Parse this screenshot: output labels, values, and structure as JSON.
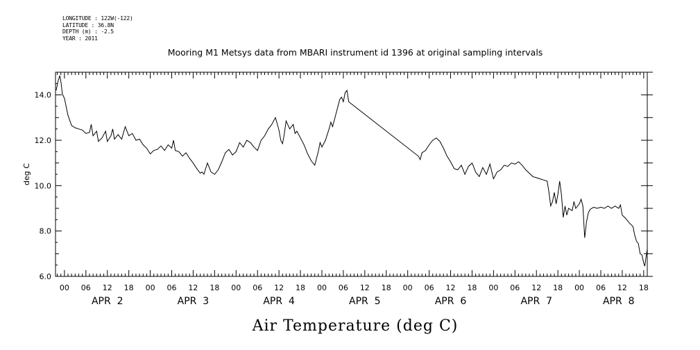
{
  "header": {
    "meta_lines": [
      "LONGITUDE : 122W(-122)",
      "LATITUDE : 36.8N",
      "DEPTH (m) : -2.5",
      "YEAR : 2011"
    ],
    "title": "Mooring M1 Metsys data from MBARI instrument id 1396 at original sampling intervals"
  },
  "chart_data": {
    "type": "line",
    "title": "Mooring M1 Metsys data from MBARI instrument id 1396 at original sampling intervals",
    "bottom_title": "Air Temperature (deg C)",
    "ylabel": "deg C",
    "xlabel": "",
    "x_units": "hours since 2011-04-02 00:00",
    "xlim": [
      -2.5,
      163
    ],
    "ylim": [
      6.0,
      15.0
    ],
    "y_ticks": [
      6.0,
      8.0,
      10.0,
      12.0,
      14.0
    ],
    "y_tick_labels": [
      "6.0",
      "8.0",
      "10.0",
      "12.0",
      "14.0"
    ],
    "hour_ticks": [
      0,
      6,
      12,
      18,
      24,
      30,
      36,
      42,
      48,
      54,
      60,
      66,
      72,
      78,
      84,
      90,
      96,
      102,
      108,
      114,
      120,
      126,
      132,
      138,
      144,
      150,
      156,
      162
    ],
    "hour_tick_labels": [
      "00",
      "06",
      "12",
      "18",
      "00",
      "06",
      "12",
      "18",
      "00",
      "06",
      "12",
      "18",
      "00",
      "06",
      "12",
      "18",
      "00",
      "06",
      "12",
      "18",
      "00",
      "06",
      "12",
      "18",
      "00",
      "06",
      "12",
      "18"
    ],
    "day_labels": [
      {
        "label": "APR  2",
        "hour": 12
      },
      {
        "label": "APR  3",
        "hour": 36
      },
      {
        "label": "APR  4",
        "hour": 60
      },
      {
        "label": "APR  5",
        "hour": 84
      },
      {
        "label": "APR  6",
        "hour": 108
      },
      {
        "label": "APR  7",
        "hour": 132
      },
      {
        "label": "APR  8",
        "hour": 155
      }
    ],
    "series": [
      {
        "name": "",
        "color": "#000000",
        "points": [
          [
            -2.3,
            14.2
          ],
          [
            -1.8,
            14.6
          ],
          [
            -1.3,
            14.85
          ],
          [
            -0.9,
            14.5
          ],
          [
            -0.6,
            14.05
          ],
          [
            0.0,
            13.85
          ],
          [
            1.0,
            13.1
          ],
          [
            2.0,
            12.65
          ],
          [
            3.0,
            12.55
          ],
          [
            4.0,
            12.5
          ],
          [
            5.0,
            12.45
          ],
          [
            6.0,
            12.3
          ],
          [
            7.0,
            12.35
          ],
          [
            7.5,
            12.7
          ],
          [
            8.0,
            12.2
          ],
          [
            9.0,
            12.4
          ],
          [
            9.5,
            11.95
          ],
          [
            10.5,
            12.1
          ],
          [
            11.5,
            12.4
          ],
          [
            12.0,
            11.95
          ],
          [
            13.0,
            12.2
          ],
          [
            13.5,
            12.5
          ],
          [
            14.0,
            12.05
          ],
          [
            15.0,
            12.25
          ],
          [
            16.0,
            12.05
          ],
          [
            17.0,
            12.6
          ],
          [
            18.0,
            12.2
          ],
          [
            19.0,
            12.3
          ],
          [
            20.0,
            12.0
          ],
          [
            21.0,
            12.05
          ],
          [
            22.0,
            11.8
          ],
          [
            23.0,
            11.65
          ],
          [
            24.0,
            11.4
          ],
          [
            25.0,
            11.55
          ],
          [
            26.0,
            11.6
          ],
          [
            27.0,
            11.75
          ],
          [
            28.0,
            11.55
          ],
          [
            29.0,
            11.8
          ],
          [
            30.0,
            11.65
          ],
          [
            30.5,
            12.0
          ],
          [
            31.0,
            11.55
          ],
          [
            32.0,
            11.5
          ],
          [
            33.0,
            11.3
          ],
          [
            34.0,
            11.45
          ],
          [
            35.0,
            11.2
          ],
          [
            36.0,
            11.0
          ],
          [
            37.0,
            10.75
          ],
          [
            38.0,
            10.55
          ],
          [
            38.5,
            10.6
          ],
          [
            39.0,
            10.5
          ],
          [
            40.0,
            11.0
          ],
          [
            41.0,
            10.6
          ],
          [
            42.0,
            10.5
          ],
          [
            43.0,
            10.7
          ],
          [
            44.0,
            11.05
          ],
          [
            45.0,
            11.45
          ],
          [
            46.0,
            11.6
          ],
          [
            47.0,
            11.35
          ],
          [
            48.0,
            11.5
          ],
          [
            49.0,
            11.9
          ],
          [
            50.0,
            11.7
          ],
          [
            51.0,
            12.0
          ],
          [
            52.0,
            11.9
          ],
          [
            53.0,
            11.7
          ],
          [
            54.0,
            11.55
          ],
          [
            55.0,
            12.0
          ],
          [
            56.0,
            12.2
          ],
          [
            57.0,
            12.5
          ],
          [
            58.0,
            12.7
          ],
          [
            59.0,
            13.0
          ],
          [
            60.0,
            12.45
          ],
          [
            60.5,
            12.0
          ],
          [
            61.0,
            11.85
          ],
          [
            61.5,
            12.3
          ],
          [
            62.0,
            12.85
          ],
          [
            63.0,
            12.5
          ],
          [
            64.0,
            12.7
          ],
          [
            64.5,
            12.3
          ],
          [
            65.0,
            12.4
          ],
          [
            66.0,
            12.1
          ],
          [
            67.0,
            11.8
          ],
          [
            68.0,
            11.4
          ],
          [
            69.0,
            11.1
          ],
          [
            70.0,
            10.9
          ],
          [
            71.0,
            11.5
          ],
          [
            71.5,
            11.9
          ],
          [
            72.0,
            11.7
          ],
          [
            73.0,
            12.0
          ],
          [
            74.0,
            12.5
          ],
          [
            74.5,
            12.8
          ],
          [
            75.0,
            12.6
          ],
          [
            76.0,
            13.2
          ],
          [
            77.0,
            13.8
          ],
          [
            77.5,
            13.9
          ],
          [
            78.0,
            13.7
          ],
          [
            78.5,
            14.1
          ],
          [
            79.0,
            14.2
          ],
          [
            79.5,
            13.7
          ],
          [
            99.0,
            11.3
          ],
          [
            99.5,
            11.15
          ],
          [
            100.0,
            11.45
          ],
          [
            101.0,
            11.55
          ],
          [
            102.0,
            11.8
          ],
          [
            103.0,
            12.0
          ],
          [
            104.0,
            12.1
          ],
          [
            105.0,
            11.95
          ],
          [
            106.0,
            11.65
          ],
          [
            107.0,
            11.3
          ],
          [
            108.0,
            11.05
          ],
          [
            108.5,
            10.9
          ],
          [
            109.0,
            10.75
          ],
          [
            110.0,
            10.7
          ],
          [
            111.0,
            10.9
          ],
          [
            112.0,
            10.5
          ],
          [
            113.0,
            10.85
          ],
          [
            114.0,
            11.0
          ],
          [
            115.0,
            10.6
          ],
          [
            116.0,
            10.4
          ],
          [
            117.0,
            10.8
          ],
          [
            118.0,
            10.5
          ],
          [
            119.0,
            10.95
          ],
          [
            120.0,
            10.3
          ],
          [
            121.0,
            10.6
          ],
          [
            122.0,
            10.7
          ],
          [
            123.0,
            10.9
          ],
          [
            124.0,
            10.85
          ],
          [
            125.0,
            11.0
          ],
          [
            126.0,
            10.95
          ],
          [
            127.0,
            11.05
          ],
          [
            128.0,
            10.9
          ],
          [
            129.0,
            10.7
          ],
          [
            130.0,
            10.55
          ],
          [
            131.0,
            10.4
          ],
          [
            132.0,
            10.35
          ],
          [
            133.0,
            10.3
          ],
          [
            134.0,
            10.25
          ],
          [
            135.0,
            10.2
          ],
          [
            135.5,
            9.7
          ],
          [
            136.0,
            9.1
          ],
          [
            136.5,
            9.3
          ],
          [
            137.0,
            9.7
          ],
          [
            137.5,
            9.2
          ],
          [
            138.0,
            9.6
          ],
          [
            138.5,
            10.2
          ],
          [
            139.0,
            9.6
          ],
          [
            139.5,
            8.6
          ],
          [
            140.0,
            9.1
          ],
          [
            140.5,
            8.7
          ],
          [
            141.0,
            9.0
          ],
          [
            142.0,
            8.9
          ],
          [
            142.5,
            9.3
          ],
          [
            143.0,
            9.0
          ],
          [
            144.0,
            9.2
          ],
          [
            144.5,
            9.4
          ],
          [
            145.0,
            9.1
          ],
          [
            145.5,
            7.7
          ],
          [
            146.0,
            8.4
          ],
          [
            146.5,
            8.8
          ],
          [
            147.0,
            8.95
          ],
          [
            148.0,
            9.05
          ],
          [
            149.0,
            9.0
          ],
          [
            150.0,
            9.05
          ],
          [
            151.0,
            9.0
          ],
          [
            152.0,
            9.1
          ],
          [
            153.0,
            9.0
          ],
          [
            154.0,
            9.1
          ],
          [
            155.0,
            9.0
          ],
          [
            155.5,
            9.15
          ],
          [
            156.0,
            8.7
          ],
          [
            157.0,
            8.55
          ],
          [
            158.0,
            8.35
          ],
          [
            159.0,
            8.2
          ],
          [
            159.5,
            7.8
          ],
          [
            160.0,
            7.55
          ],
          [
            160.5,
            7.45
          ],
          [
            161.0,
            7.0
          ],
          [
            161.5,
            6.95
          ],
          [
            162.0,
            6.6
          ],
          [
            162.3,
            6.45
          ],
          [
            162.7,
            6.9
          ],
          [
            163.0,
            7.2
          ]
        ]
      }
    ]
  }
}
